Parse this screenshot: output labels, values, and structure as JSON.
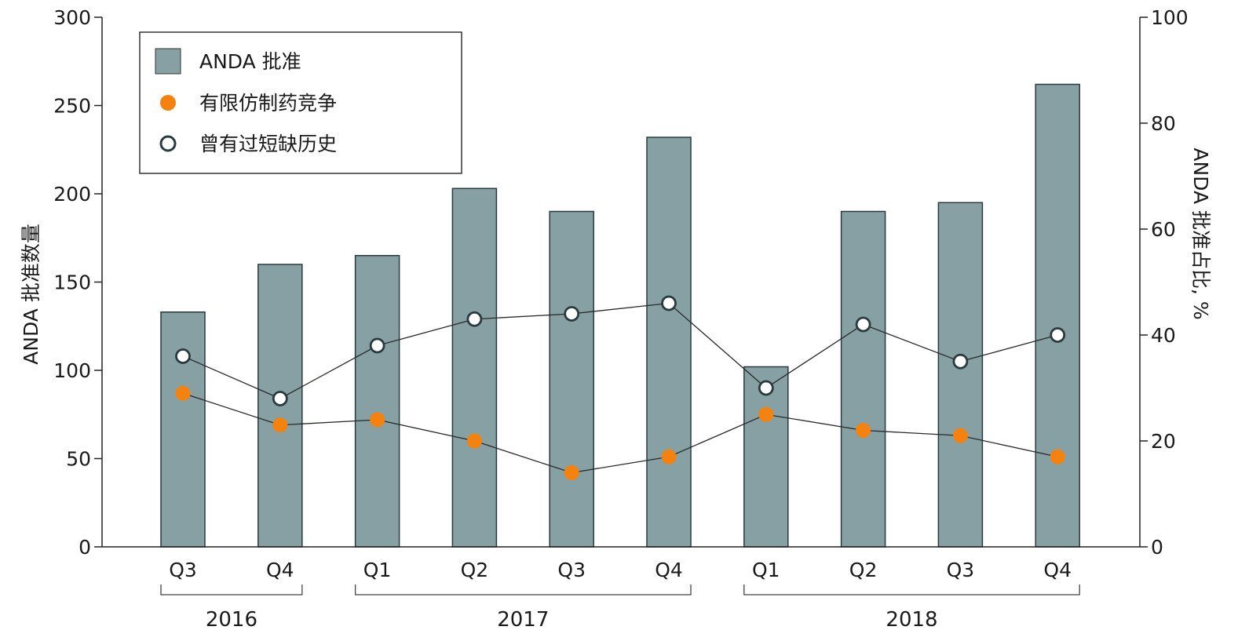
{
  "chart_data": {
    "type": "bar",
    "categories": [
      "Q3",
      "Q4",
      "Q1",
      "Q2",
      "Q3",
      "Q4",
      "Q1",
      "Q2",
      "Q3",
      "Q4"
    ],
    "groups": [
      {
        "label": "2016",
        "start": 0,
        "end": 1
      },
      {
        "label": "2017",
        "start": 2,
        "end": 5
      },
      {
        "label": "2018",
        "start": 6,
        "end": 9
      }
    ],
    "series": [
      {
        "name": "ANDA 批准",
        "type": "bar",
        "axis": "left",
        "color": "#87a0a4",
        "values": [
          133,
          160,
          165,
          203,
          190,
          232,
          102,
          190,
          195,
          262
        ]
      },
      {
        "name": "有限仿制药竞争",
        "type": "line",
        "axis": "right",
        "color": "#f5820e",
        "values": [
          29,
          23,
          24,
          20,
          14,
          17,
          25,
          22,
          21,
          17
        ]
      },
      {
        "name": "曾有过短缺历史",
        "type": "line",
        "axis": "right",
        "color": "#ffffff",
        "values": [
          36,
          28,
          38,
          43,
          44,
          46,
          30,
          42,
          35,
          40
        ]
      }
    ],
    "ylabel_left": "ANDA 批准数量",
    "ylabel_right": "ANDA 批准占比, %",
    "ylim_left": [
      0,
      300
    ],
    "ylim_right": [
      0,
      100
    ],
    "yticks_left": [
      "0",
      "50",
      "100",
      "150",
      "200",
      "250",
      "300"
    ],
    "yticks_right": [
      "0",
      "20",
      "40",
      "60",
      "80",
      "100"
    ],
    "grid": false,
    "legend_position": "top-left"
  }
}
